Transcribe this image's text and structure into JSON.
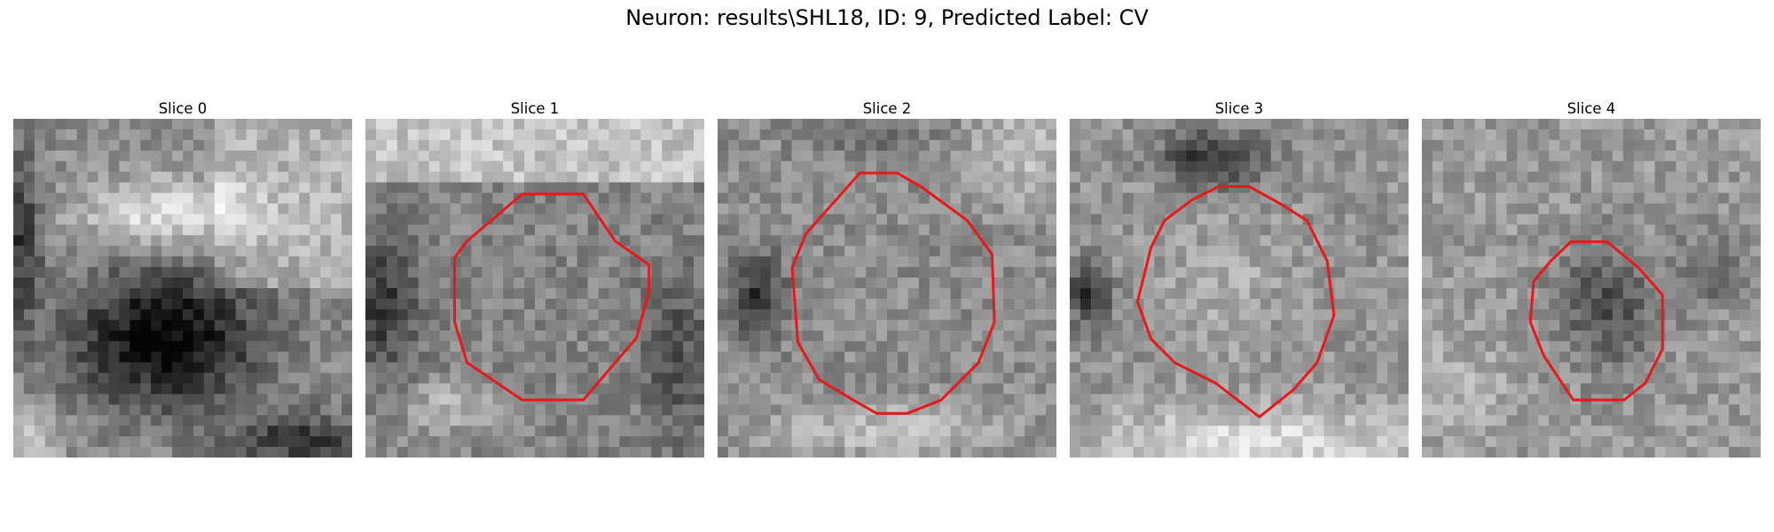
{
  "figure": {
    "title": "Neuron: results\\SHL18, ID: 9, Predicted Label: CV",
    "outline_color": "#e8191b"
  },
  "panels": [
    {
      "title": "Slice 0",
      "outline": []
    },
    {
      "title": "Slice 1",
      "outline": [
        [
          0.463,
          0.222
        ],
        [
          0.643,
          0.222
        ],
        [
          0.737,
          0.361
        ],
        [
          0.837,
          0.431
        ],
        [
          0.837,
          0.507
        ],
        [
          0.8,
          0.647
        ],
        [
          0.737,
          0.72
        ],
        [
          0.643,
          0.83
        ],
        [
          0.463,
          0.83
        ],
        [
          0.3,
          0.72
        ],
        [
          0.263,
          0.6
        ],
        [
          0.263,
          0.41
        ],
        [
          0.3,
          0.361
        ]
      ]
    },
    {
      "title": "Slice 2",
      "outline": [
        [
          0.42,
          0.16
        ],
        [
          0.53,
          0.16
        ],
        [
          0.6,
          0.2
        ],
        [
          0.737,
          0.3
        ],
        [
          0.81,
          0.4
        ],
        [
          0.817,
          0.6
        ],
        [
          0.77,
          0.72
        ],
        [
          0.66,
          0.83
        ],
        [
          0.56,
          0.87
        ],
        [
          0.47,
          0.87
        ],
        [
          0.4,
          0.83
        ],
        [
          0.3,
          0.77
        ],
        [
          0.237,
          0.66
        ],
        [
          0.22,
          0.44
        ],
        [
          0.26,
          0.34
        ],
        [
          0.34,
          0.25
        ]
      ]
    },
    {
      "title": "Slice 3",
      "outline": [
        [
          0.44,
          0.2
        ],
        [
          0.53,
          0.2
        ],
        [
          0.62,
          0.25
        ],
        [
          0.7,
          0.3
        ],
        [
          0.76,
          0.42
        ],
        [
          0.78,
          0.58
        ],
        [
          0.73,
          0.72
        ],
        [
          0.66,
          0.8
        ],
        [
          0.56,
          0.88
        ],
        [
          0.43,
          0.78
        ],
        [
          0.31,
          0.72
        ],
        [
          0.24,
          0.65
        ],
        [
          0.2,
          0.54
        ],
        [
          0.24,
          0.38
        ],
        [
          0.28,
          0.3
        ],
        [
          0.36,
          0.24
        ]
      ]
    },
    {
      "title": "Slice 4",
      "outline": [
        [
          0.44,
          0.363
        ],
        [
          0.547,
          0.363
        ],
        [
          0.64,
          0.44
        ],
        [
          0.71,
          0.52
        ],
        [
          0.71,
          0.68
        ],
        [
          0.66,
          0.78
        ],
        [
          0.597,
          0.83
        ],
        [
          0.447,
          0.83
        ],
        [
          0.36,
          0.7
        ],
        [
          0.32,
          0.6
        ],
        [
          0.33,
          0.48
        ],
        [
          0.38,
          0.42
        ]
      ]
    }
  ]
}
